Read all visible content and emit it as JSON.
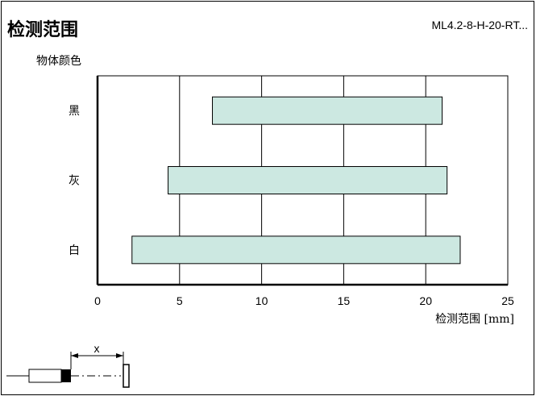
{
  "header": {
    "title": "检测范围",
    "model": "ML4.2-8-H-20-RT..."
  },
  "chart_data": {
    "type": "bar",
    "orientation": "horizontal-range",
    "ylabel": "物体颜色",
    "xlabel": "检测范围 [mm]",
    "categories": [
      "黑",
      "灰",
      "白"
    ],
    "ranges": [
      [
        7,
        21
      ],
      [
        4.3,
        21.3
      ],
      [
        2.1,
        22.1
      ]
    ],
    "xlim": [
      0,
      25
    ],
    "xticks": [
      "0",
      "5",
      "10",
      "15",
      "20",
      "25"
    ],
    "grid": "vertical",
    "bar_color": "#cce8e1"
  },
  "diagram": {
    "dimension_label": "x"
  }
}
